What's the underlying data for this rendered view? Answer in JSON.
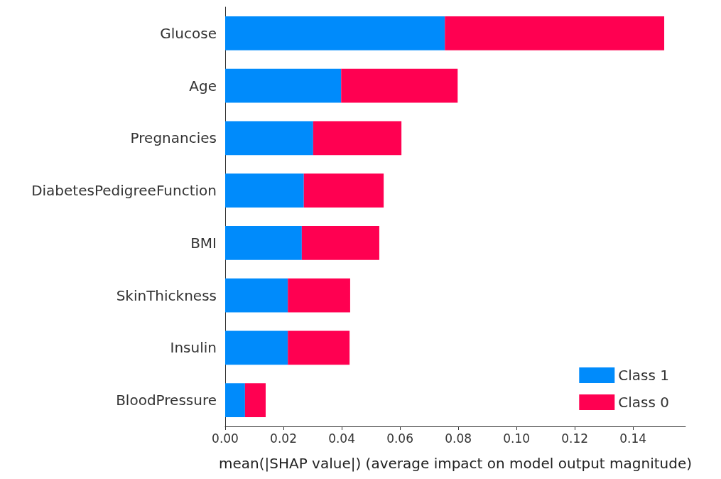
{
  "chart_data": {
    "type": "bar",
    "orientation": "horizontal",
    "stacked": true,
    "categories": [
      "Glucose",
      "Age",
      "Pregnancies",
      "DiabetesPedigreeFunction",
      "BMI",
      "SkinThickness",
      "Insulin",
      "BloodPressure"
    ],
    "series": [
      {
        "name": "Class 1",
        "color": "#008bfb",
        "values": [
          0.0754,
          0.0398,
          0.0302,
          0.027,
          0.0263,
          0.0215,
          0.0215,
          0.0068
        ]
      },
      {
        "name": "Class 0",
        "color": "#ff0051",
        "values": [
          0.0753,
          0.04,
          0.0303,
          0.0274,
          0.0266,
          0.0214,
          0.0212,
          0.0071
        ]
      }
    ],
    "xlabel": "mean(|SHAP value|) (average impact on model output magnitude)",
    "xlim": [
      0,
      0.158
    ],
    "xticks": [
      {
        "value": 0,
        "label": "0.00"
      },
      {
        "value": 0.02,
        "label": "0.02"
      },
      {
        "value": 0.04,
        "label": "0.04"
      },
      {
        "value": 0.06,
        "label": "0.06"
      },
      {
        "value": 0.08,
        "label": "0.08"
      },
      {
        "value": 0.1,
        "label": "0.10"
      },
      {
        "value": 0.12,
        "label": "0.12"
      },
      {
        "value": 0.14,
        "label": "0.14"
      }
    ],
    "grid": false,
    "legend": "bottom right"
  }
}
